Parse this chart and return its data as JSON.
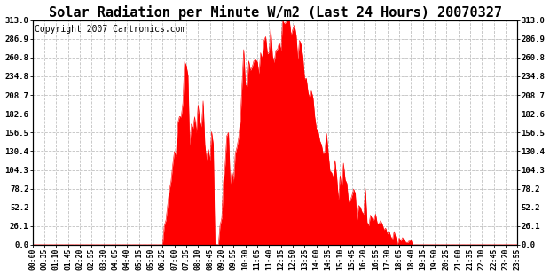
{
  "title": "Solar Radiation per Minute W/m2 (Last 24 Hours) 20070327",
  "copyright_text": "Copyright 2007 Cartronics.com",
  "yticks": [
    0.0,
    26.1,
    52.2,
    78.2,
    104.3,
    130.4,
    156.5,
    182.6,
    208.7,
    234.8,
    260.8,
    286.9,
    313.0
  ],
  "ymax": 313.0,
  "fill_color": "#FF0000",
  "line_color": "#FF0000",
  "bg_color": "#FFFFFF",
  "plot_bg_color": "#FFFFFF",
  "grid_color": "#C0C0C0",
  "dashed_line_color": "#FF0000",
  "title_fontsize": 11,
  "copyright_fontsize": 7,
  "xtick_labels": [
    "00:00",
    "00:35",
    "01:10",
    "01:45",
    "02:20",
    "02:55",
    "03:30",
    "04:05",
    "04:40",
    "05:15",
    "05:50",
    "06:25",
    "07:00",
    "07:35",
    "08:10",
    "08:45",
    "09:20",
    "09:55",
    "10:30",
    "11:05",
    "11:40",
    "12:15",
    "12:50",
    "13:25",
    "14:00",
    "14:35",
    "15:10",
    "15:45",
    "16:20",
    "16:55",
    "17:30",
    "18:05",
    "18:40",
    "19:15",
    "19:50",
    "20:25",
    "21:00",
    "21:35",
    "22:10",
    "22:45",
    "23:20",
    "23:55"
  ]
}
